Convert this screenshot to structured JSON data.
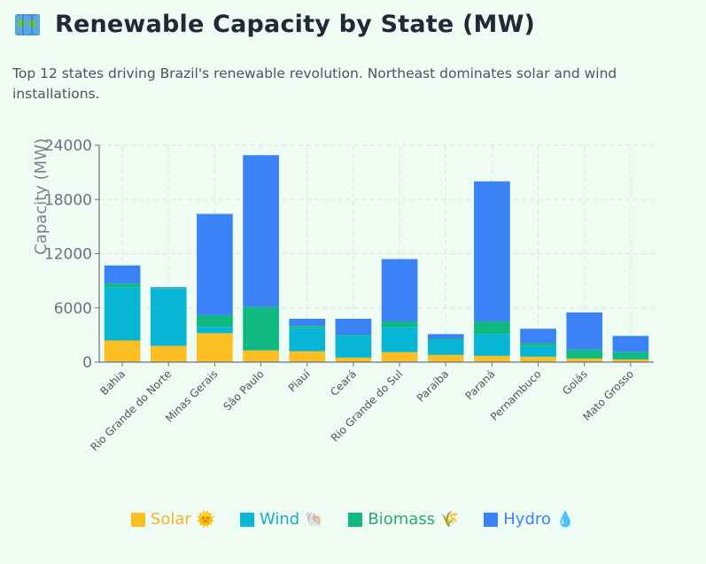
{
  "header": {
    "title": "Renewable Capacity by State (MW)",
    "subtitle": "Top 12 states driving Brazil's renewable revolution. Northeast dominates solar and wind installations."
  },
  "colors": {
    "solar": "#fbbf24",
    "wind": "#06b6d4",
    "biomass": "#10b981",
    "hydro": "#3b82f6"
  },
  "legend": [
    {
      "name": "Solar",
      "emoji": "🌞",
      "color": "#fbbf24",
      "text_color": "#f6b42a"
    },
    {
      "name": "Wind",
      "emoji": "🐚",
      "color": "#06b6d4",
      "text_color": "#18aebd"
    },
    {
      "name": "Biomass",
      "emoji": "🌾",
      "color": "#10b981",
      "text_color": "#2aa877"
    },
    {
      "name": "Hydro",
      "emoji": "💧",
      "color": "#3b82f6",
      "text_color": "#3b82f6"
    }
  ],
  "chart_data": {
    "type": "bar",
    "stacked": true,
    "ylabel": "Capacity (MW)",
    "ylim": [
      0,
      24000
    ],
    "yticks": [
      0,
      6000,
      12000,
      18000,
      24000
    ],
    "grid": true,
    "legend_position": "bottom",
    "categories": [
      "Bahia",
      "Rio Grande do Norte",
      "Minas Gerais",
      "São Paulo",
      "Piauí",
      "Ceará",
      "Rio Grande do Sul",
      "Paraíba",
      "Paraná",
      "Pernambuco",
      "Goiás",
      "Mato Grosso"
    ],
    "series": [
      {
        "name": "Solar",
        "values": [
          2400,
          1800,
          3200,
          1300,
          1200,
          500,
          1100,
          800,
          700,
          600,
          400,
          300
        ]
      },
      {
        "name": "Wind",
        "values": [
          5900,
          6300,
          700,
          0,
          2600,
          2400,
          2800,
          1700,
          2400,
          1200,
          0,
          0
        ]
      },
      {
        "name": "Biomass",
        "values": [
          400,
          100,
          1300,
          4800,
          200,
          100,
          600,
          100,
          1400,
          300,
          1000,
          800
        ]
      },
      {
        "name": "Hydro",
        "values": [
          2000,
          100,
          11200,
          16800,
          800,
          1800,
          6900,
          500,
          15500,
          1600,
          4100,
          1800
        ]
      }
    ]
  }
}
